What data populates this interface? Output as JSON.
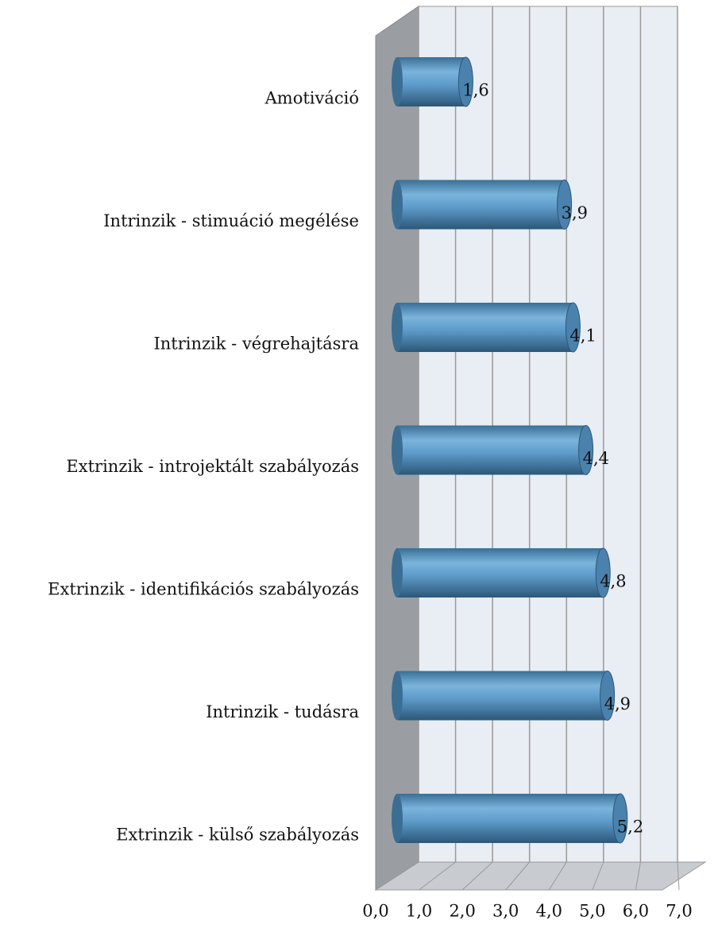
{
  "chart_data": {
    "type": "bar",
    "orientation": "horizontal",
    "categories": [
      "Amotiváció",
      "Intrinzik - stimuáció megélése",
      "Intrinzik - végrehajtásra",
      "Extrinzik - introjektált szabályozás",
      "Extrinzik - identifikációs szabályozás",
      "Intrinzik - tudásra",
      "Extrinzik - külső szabályozás"
    ],
    "values": [
      1.6,
      3.9,
      4.1,
      4.4,
      4.8,
      4.9,
      5.2
    ],
    "value_labels": [
      "1,6",
      "3,9",
      "4,1",
      "4,4",
      "4,8",
      "4,9",
      "5,2"
    ],
    "color": "#4a90c4",
    "xlim": [
      0,
      7
    ],
    "xticks": [
      {
        "value": 0,
        "label": "0,0"
      },
      {
        "value": 1,
        "label": "1,0"
      },
      {
        "value": 2,
        "label": "2,0"
      },
      {
        "value": 3,
        "label": "3,0"
      },
      {
        "value": 4,
        "label": "4,0"
      },
      {
        "value": 5,
        "label": "5,0"
      },
      {
        "value": 6,
        "label": "6,0"
      },
      {
        "value": 7,
        "label": "7,0"
      }
    ],
    "grid": true
  }
}
